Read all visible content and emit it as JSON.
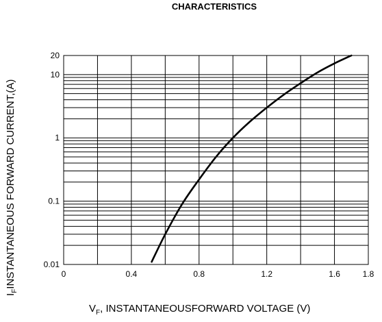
{
  "chart_data": {
    "type": "line",
    "title": "CHARACTERISTICS",
    "xlabel_main": "V",
    "xlabel_sub": "F",
    "xlabel_rest": ", INSTANTANEOUSFORWARD VOLTAGE (V)",
    "ylabel_main": "I",
    "ylabel_sub": "F",
    "ylabel_rest": "INSTANTANEOUS FORWARD CURRENT,(A)",
    "x_scale": "linear",
    "y_scale": "log",
    "xlim": [
      0,
      1.8
    ],
    "ylim": [
      0.01,
      20
    ],
    "x_ticks": [
      "0",
      "0.4",
      "0.8",
      "1.2",
      "1.6",
      "1.8"
    ],
    "x_tick_values": [
      0,
      0.4,
      0.8,
      1.2,
      1.6,
      1.8
    ],
    "y_ticks": [
      "0.01",
      "0.1",
      "1",
      "10",
      "20"
    ],
    "y_tick_values": [
      0.01,
      0.1,
      1,
      10,
      20
    ],
    "grid": true,
    "series": [
      {
        "x": [
          0.52,
          0.6,
          0.7,
          0.8,
          0.9,
          1.0,
          1.1,
          1.2,
          1.3,
          1.4,
          1.5,
          1.6,
          1.7
        ],
        "y": [
          0.011,
          0.03,
          0.09,
          0.22,
          0.5,
          1.0,
          1.8,
          3.0,
          4.8,
          7.3,
          10.8,
          15.0,
          20.0
        ]
      }
    ],
    "line_color": "#000000"
  }
}
